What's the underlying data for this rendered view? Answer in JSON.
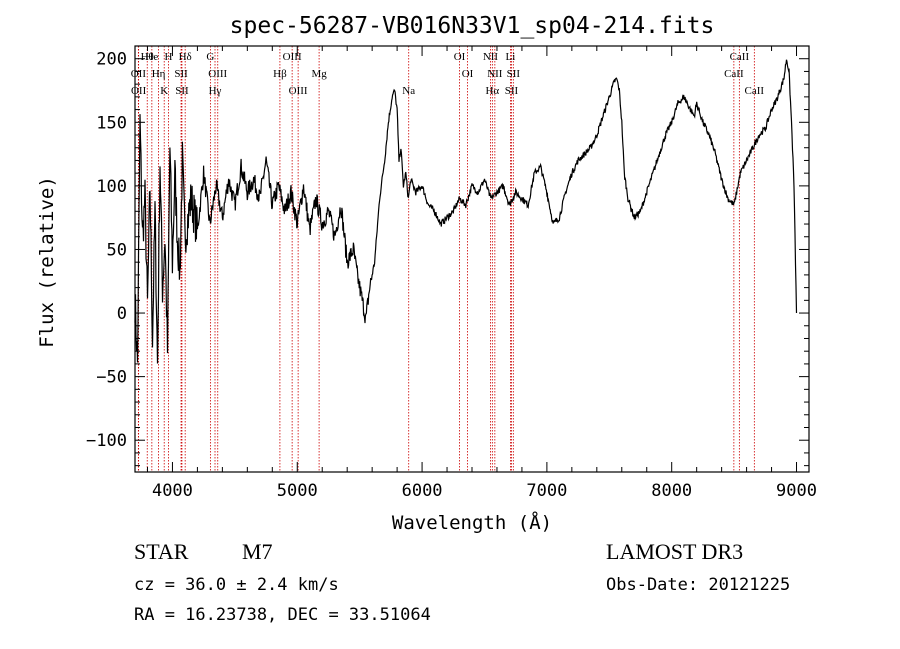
{
  "chart_data": {
    "type": "line",
    "title": "spec-56287-VB016N33V1_sp04-214.fits",
    "xlabel": "Wavelength (Å)",
    "ylabel": "Flux (relative)",
    "xlim": [
      3700,
      9100
    ],
    "ylim": [
      -125,
      210
    ],
    "xticks": [
      4000,
      5000,
      6000,
      7000,
      8000,
      9000
    ],
    "yticks": [
      -100,
      -50,
      0,
      50,
      100,
      150,
      200
    ],
    "xtick_labels": [
      "4000",
      "5000",
      "6000",
      "7000",
      "8000",
      "9000"
    ],
    "ytick_labels": [
      "−100",
      "−50",
      "0",
      "50",
      "100",
      "150",
      "200"
    ],
    "series": [
      {
        "name": "flux",
        "x": [
          3700,
          3720,
          3740,
          3760,
          3780,
          3800,
          3820,
          3840,
          3860,
          3880,
          3900,
          3920,
          3940,
          3960,
          3980,
          4000,
          4020,
          4040,
          4060,
          4080,
          4100,
          4150,
          4200,
          4250,
          4300,
          4350,
          4400,
          4450,
          4500,
          4550,
          4600,
          4650,
          4700,
          4750,
          4800,
          4850,
          4900,
          4950,
          5000,
          5050,
          5100,
          5150,
          5200,
          5250,
          5300,
          5350,
          5400,
          5450,
          5480,
          5520,
          5550,
          5580,
          5620,
          5660,
          5700,
          5730,
          5760,
          5780,
          5800,
          5815,
          5830,
          5850,
          5870,
          5890,
          5910,
          5950,
          6000,
          6050,
          6100,
          6150,
          6200,
          6250,
          6300,
          6350,
          6400,
          6450,
          6500,
          6550,
          6600,
          6650,
          6700,
          6750,
          6800,
          6850,
          6900,
          6950,
          7000,
          7050,
          7100,
          7150,
          7200,
          7250,
          7300,
          7350,
          7400,
          7450,
          7500,
          7540,
          7560,
          7580,
          7600,
          7620,
          7650,
          7700,
          7750,
          7800,
          7850,
          7900,
          7950,
          8000,
          8050,
          8100,
          8150,
          8180,
          8200,
          8250,
          8300,
          8350,
          8400,
          8450,
          8500,
          8520,
          8550,
          8600,
          8650,
          8700,
          8750,
          8800,
          8850,
          8900,
          8920,
          8940,
          8960,
          8980,
          9000
        ],
        "y": [
          10,
          -40,
          150,
          60,
          90,
          5,
          100,
          -20,
          80,
          -40,
          120,
          20,
          60,
          -30,
          130,
          40,
          110,
          60,
          30,
          120,
          60,
          90,
          65,
          110,
          70,
          100,
          75,
          105,
          85,
          115,
          95,
          105,
          90,
          120,
          85,
          100,
          80,
          95,
          70,
          100,
          65,
          90,
          70,
          80,
          60,
          85,
          40,
          50,
          30,
          10,
          -5,
          20,
          40,
          90,
          120,
          150,
          170,
          175,
          160,
          120,
          130,
          100,
          110,
          90,
          105,
          95,
          100,
          85,
          80,
          70,
          75,
          80,
          90,
          85,
          100,
          95,
          105,
          90,
          95,
          100,
          85,
          95,
          90,
          85,
          110,
          115,
          95,
          70,
          75,
          95,
          110,
          120,
          125,
          130,
          140,
          155,
          170,
          182,
          184,
          175,
          150,
          110,
          90,
          75,
          80,
          95,
          110,
          125,
          140,
          150,
          165,
          170,
          160,
          155,
          165,
          150,
          140,
          125,
          105,
          90,
          85,
          95,
          110,
          120,
          130,
          140,
          145,
          160,
          170,
          185,
          200,
          190,
          150,
          100,
          0
        ]
      }
    ],
    "line_labels": [
      {
        "label": "Hθ",
        "wl": 3798
      },
      {
        "label": "OII",
        "wl": 3727
      },
      {
        "label": "OII",
        "wl": 3729
      },
      {
        "label": "He",
        "wl": 3835
      },
      {
        "label": "Hη",
        "wl": 3889
      },
      {
        "label": "K",
        "wl": 3934
      },
      {
        "label": "H",
        "wl": 3968
      },
      {
        "label": "SII",
        "wl": 4069
      },
      {
        "label": "SII",
        "wl": 4076
      },
      {
        "label": "Hδ",
        "wl": 4102
      },
      {
        "label": "OIII",
        "wl": 4363
      },
      {
        "label": "Hγ",
        "wl": 4341
      },
      {
        "label": "G",
        "wl": 4304
      },
      {
        "label": "Hβ",
        "wl": 4861
      },
      {
        "label": "OIII",
        "wl": 5007
      },
      {
        "label": "OIII",
        "wl": 4959
      },
      {
        "label": "Mg",
        "wl": 5175
      },
      {
        "label": "Na",
        "wl": 5893
      },
      {
        "label": "OI",
        "wl": 6300
      },
      {
        "label": "OI",
        "wl": 6364
      },
      {
        "label": "Hα",
        "wl": 6563
      },
      {
        "label": "NII",
        "wl": 6548
      },
      {
        "label": "NII",
        "wl": 6583
      },
      {
        "label": "SII",
        "wl": 6716
      },
      {
        "label": "Li",
        "wl": 6708
      },
      {
        "label": "SII",
        "wl": 6731
      },
      {
        "label": "CaII",
        "wl": 8662
      },
      {
        "label": "CaII",
        "wl": 8542
      },
      {
        "label": "CaII",
        "wl": 8498
      }
    ]
  },
  "info": {
    "class": "STAR",
    "subclass": "M7",
    "survey": "LAMOST DR3",
    "cz": "cz = 36.0 ± 2.4 km/s",
    "obs_date": "Obs-Date: 20121225",
    "coords": "RA =  16.23738, DEC =  33.51064"
  }
}
